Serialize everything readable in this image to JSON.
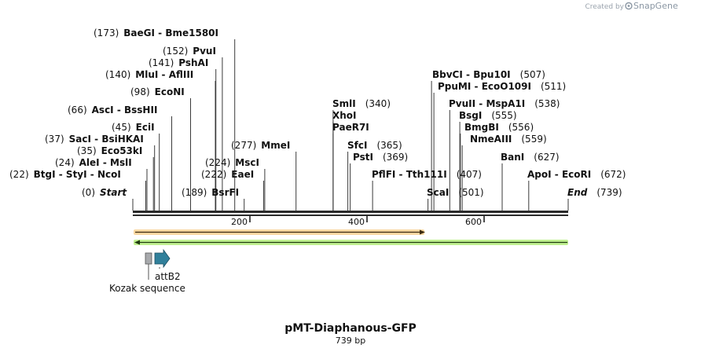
{
  "credit": {
    "prefix": "Created by",
    "brand": "SnapGene"
  },
  "title": "pMT-Diaphanous-GFP",
  "length_label": "739 bp",
  "ruler": {
    "ticks": [
      "200",
      "400",
      "600"
    ]
  },
  "sites": [
    {
      "pos": "(173)",
      "name": "BaeGI",
      "sep": " - ",
      "name2": "Bme1580I",
      "bp": 173
    },
    {
      "pos": "(152)",
      "name": "PvuI",
      "bp": 152
    },
    {
      "pos": "(141)",
      "name": "PshAI",
      "bp": 141
    },
    {
      "pos": "(140)",
      "name": "MluI",
      "sep": " - ",
      "name2": "AflIII",
      "bp": 140
    },
    {
      "pos": "(98)",
      "name": "EcoNI",
      "bp": 98
    },
    {
      "pos": "(66)",
      "name": "AscI",
      "sep": " - ",
      "name2": "BssHII",
      "bp": 66
    },
    {
      "pos": "(45)",
      "name": "EciI",
      "bp": 45
    },
    {
      "pos": "(37)",
      "name": "SacI",
      "sep": " - ",
      "name2": "BsiHKAI",
      "bp": 37
    },
    {
      "pos": "(35)",
      "name": "Eco53kI",
      "bp": 35
    },
    {
      "pos": "(24)",
      "name": "AleI",
      "sep": " - ",
      "name2": "MslI",
      "bp": 24
    },
    {
      "pos": "(22)",
      "name": "BtgI",
      "sep": " - ",
      "name2": "StyI",
      "sep2": " - ",
      "name3": "NcoI",
      "bp": 22
    },
    {
      "pos": "(0)",
      "name": "Start",
      "italic": true,
      "bp": 0
    },
    {
      "pos": "(189)",
      "name": "BsrFI",
      "bp": 189
    },
    {
      "pos": "(222)",
      "name": "EaeI",
      "bp": 222
    },
    {
      "pos": "(224)",
      "name": "MscI",
      "bp": 224
    },
    {
      "pos": "(277)",
      "name": "MmeI",
      "bp": 277
    },
    {
      "name": "SmlI",
      "pos": "(340)",
      "bp": 340
    },
    {
      "name": "XhoI",
      "bp": 340
    },
    {
      "name": "PaeR7I",
      "bp": 340
    },
    {
      "name": "SfcI",
      "pos": "(365)",
      "bp": 365
    },
    {
      "name": "PstI",
      "pos": "(369)",
      "bp": 369
    },
    {
      "name": "PflFI",
      "sep": " - ",
      "name2": "Tth111I",
      "pos": "(407)",
      "bp": 407
    },
    {
      "name": "ScaI",
      "pos": "(501)",
      "bp": 501
    },
    {
      "name": "BbvCI",
      "sep": " - ",
      "name2": "Bpu10I",
      "pos": "(507)",
      "bp": 507
    },
    {
      "name": "PpuMI",
      "sep": " - ",
      "name2": "EcoO109I",
      "pos": "(511)",
      "bp": 511
    },
    {
      "name": "PvuII",
      "sep": " - ",
      "name2": "MspA1I",
      "pos": "(538)",
      "bp": 538
    },
    {
      "name": "BsgI",
      "pos": "(555)",
      "bp": 555
    },
    {
      "name": "BmgBI",
      "pos": "(556)",
      "bp": 556
    },
    {
      "name": "NmeAIII",
      "pos": "(559)",
      "bp": 559
    },
    {
      "name": "BanI",
      "pos": "(627)",
      "bp": 627
    },
    {
      "name": "ApoI",
      "sep": " - ",
      "name2": "EcoRI",
      "pos": "(672)",
      "bp": 672
    },
    {
      "name": "End",
      "italic": true,
      "pos": "(739)",
      "bp": 739
    }
  ],
  "features": [
    {
      "name": "Kozak sequence",
      "color": "#a7a9ac"
    },
    {
      "name": "attB2",
      "color": "#31809b"
    }
  ],
  "bars": {
    "orange": "#f5a623",
    "green": "#7ed321"
  }
}
